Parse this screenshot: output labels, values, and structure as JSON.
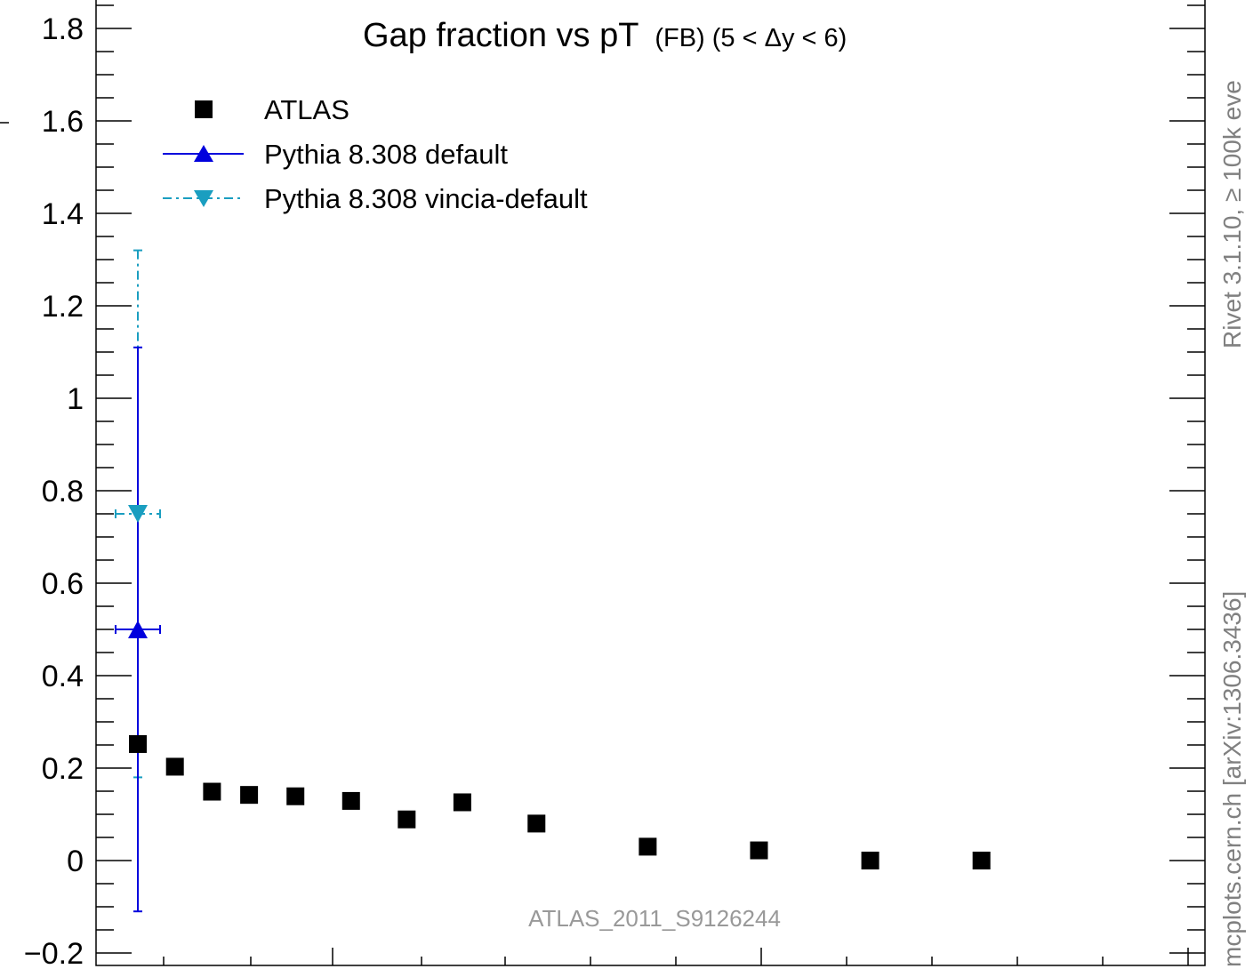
{
  "chart_data": {
    "type": "scatter",
    "title_main": "Gap fraction vs pT",
    "title_sub": "(FB) (5 < Δy < 6)",
    "watermark": "ATLAS_2011_S9126244",
    "side_label_top": "Rivet 3.1.10, ≥ 100k eve",
    "side_label_bottom": "mcplots.cern.ch [arXiv:1306.3436]",
    "ylim": [
      -0.2,
      1.85
    ],
    "y_ticks": [
      -0.2,
      0,
      0.2,
      0.4,
      0.6,
      0.8,
      1,
      1.2,
      1.4,
      1.6,
      1.8
    ],
    "y_tick_labels": [
      "−0.2",
      "0",
      "0.2",
      "0.4",
      "0.6",
      "0.8",
      "1",
      "1.2",
      "1.4",
      "1.6",
      "1.8"
    ],
    "legend_position": "top-left",
    "grid": false,
    "series": [
      {
        "name": "ATLAS",
        "color": "#000000",
        "marker": "square",
        "x": [
          75,
          95,
          115,
          135,
          160,
          190,
          220,
          250,
          290,
          350,
          410,
          470,
          530
        ],
        "y": [
          0.252,
          0.203,
          0.149,
          0.142,
          0.139,
          0.129,
          0.089,
          0.126,
          0.08,
          0.03,
          0.022,
          0.0,
          0.0
        ]
      },
      {
        "name": "Pythia 8.308 default",
        "color": "#0000dd",
        "marker": "triangle-up",
        "line": "solid",
        "x": [
          75
        ],
        "y": [
          0.5
        ],
        "xerr": [
          10
        ],
        "yerr_low": [
          0.61
        ],
        "yerr_high": [
          0.61
        ]
      },
      {
        "name": "Pythia 8.308 vincia-default",
        "color": "#1a9ec0",
        "marker": "triangle-down",
        "line": "dashdot",
        "x": [
          75
        ],
        "y": [
          0.75
        ],
        "xerr": [
          10
        ],
        "yerr_low": [
          0.57
        ],
        "yerr_high": [
          0.57
        ]
      }
    ]
  }
}
